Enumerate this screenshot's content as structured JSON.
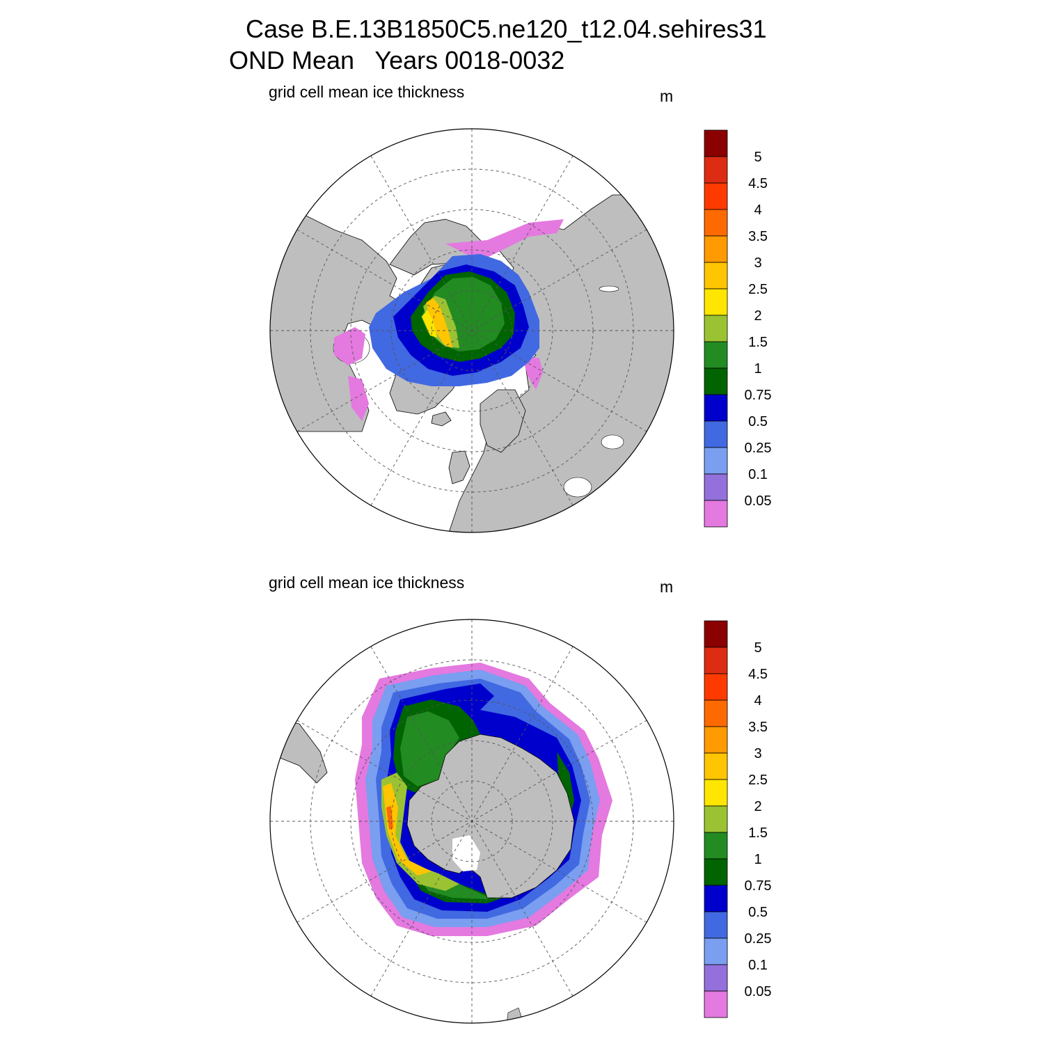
{
  "title": {
    "line1": "Case B.E.13B1850C5.ne120_t12.04.sehires31",
    "line2": "OND Mean   Years 0018-0032"
  },
  "panels": [
    {
      "id": "north",
      "hemisphere": "Northern Hemisphere (polar stereographic)",
      "label": "grid cell mean ice thickness",
      "units": "m"
    },
    {
      "id": "south",
      "hemisphere": "Southern Hemisphere (polar stereographic)",
      "label": "grid cell mean ice thickness",
      "units": "m"
    }
  ],
  "colorbar": {
    "labels": [
      "5",
      "4.5",
      "4",
      "3.5",
      "3",
      "2.5",
      "2",
      "1.5",
      "1",
      "0.75",
      "0.5",
      "0.25",
      "0.1",
      "0.05"
    ],
    "colors": [
      "#8b0000",
      "#dc2d13",
      "#ff3a00",
      "#ff6a00",
      "#ff9a00",
      "#ffc500",
      "#ffe600",
      "#9bc232",
      "#228b22",
      "#006400",
      "#0000cd",
      "#4169e1",
      "#7a9ef0",
      "#9370db",
      "#e479e0"
    ]
  },
  "map_colors": {
    "land": "#bebebe",
    "ocean": "#ffffff",
    "grid": "#555555"
  }
}
